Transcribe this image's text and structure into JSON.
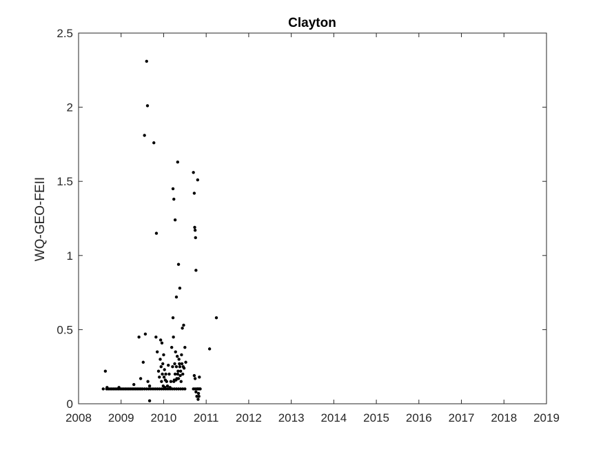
{
  "chart_data": {
    "type": "scatter",
    "title": "Clayton",
    "xlabel": "",
    "ylabel": "WQ-GEO-FEII",
    "xlim": [
      2008,
      2019
    ],
    "ylim": [
      0,
      2.5
    ],
    "x_ticks": [
      "2008",
      "2009",
      "2010",
      "2011",
      "2012",
      "2013",
      "2014",
      "2015",
      "2016",
      "2017",
      "2018",
      "2019"
    ],
    "y_ticks": [
      "0",
      "0.5",
      "1",
      "1.5",
      "2",
      "2.5"
    ],
    "grid": false,
    "marker_color": "#000000",
    "series": [
      {
        "x": [
          2008.58,
          2008.66,
          2008.7,
          2008.74,
          2008.78,
          2008.82,
          2008.86,
          2008.9,
          2008.94,
          2008.98,
          2009.02,
          2009.06,
          2009.1,
          2009.14,
          2009.18,
          2009.22,
          2009.26,
          2009.3,
          2009.34,
          2009.38,
          2009.42,
          2009.46,
          2009.5,
          2009.55,
          2009.6,
          2009.65,
          2009.7,
          2009.75,
          2009.8,
          2009.85,
          2009.9,
          2009.95,
          2010.0,
          2010.05,
          2010.1,
          2010.15,
          2010.2,
          2010.25,
          2010.3,
          2010.35,
          2010.4,
          2010.45,
          2010.5,
          2010.7,
          2010.74,
          2010.78,
          2010.82,
          2010.86,
          2008.63,
          2008.67,
          2008.95,
          2009.3,
          2009.42,
          2009.46,
          2009.52,
          2009.57,
          2009.63,
          2009.67,
          2009.82,
          2009.85,
          2009.88,
          2009.9,
          2009.92,
          2009.93,
          2009.94,
          2009.95,
          2009.96,
          2009.97,
          2009.98,
          2009.99,
          2010.0,
          2010.01,
          2010.02,
          2010.03,
          2010.04,
          2010.05,
          2010.07,
          2010.09,
          2010.11,
          2010.13,
          2010.15,
          2010.17,
          2010.19,
          2010.21,
          2010.22,
          2010.23,
          2010.24,
          2010.25,
          2010.26,
          2010.27,
          2010.28,
          2010.29,
          2010.3,
          2010.31,
          2010.32,
          2010.33,
          2010.34,
          2010.35,
          2010.36,
          2010.37,
          2010.38,
          2010.39,
          2010.4,
          2010.41,
          2010.42,
          2010.43,
          2010.44,
          2010.45,
          2010.46,
          2010.47,
          2010.48,
          2010.5,
          2010.52,
          2010.72,
          2010.74,
          2010.76,
          2010.78,
          2010.8,
          2010.81,
          2010.82,
          2010.83,
          2010.84,
          2010.85,
          2011.08,
          2011.24,
          2009.55,
          2009.6,
          2009.62,
          2009.67,
          2009.77,
          2009.83,
          2010.22,
          2010.24,
          2010.27,
          2010.3,
          2010.33,
          2010.35,
          2010.38,
          2010.7,
          2010.72,
          2010.73,
          2010.74,
          2010.75,
          2010.76,
          2010.8
        ],
        "y": [
          0.1,
          0.1,
          0.1,
          0.1,
          0.1,
          0.1,
          0.1,
          0.1,
          0.1,
          0.1,
          0.1,
          0.1,
          0.1,
          0.1,
          0.1,
          0.1,
          0.1,
          0.1,
          0.1,
          0.1,
          0.1,
          0.1,
          0.1,
          0.1,
          0.1,
          0.1,
          0.1,
          0.1,
          0.1,
          0.1,
          0.1,
          0.1,
          0.1,
          0.1,
          0.1,
          0.1,
          0.1,
          0.1,
          0.1,
          0.1,
          0.1,
          0.1,
          0.1,
          0.1,
          0.1,
          0.1,
          0.1,
          0.1,
          0.22,
          0.11,
          0.11,
          0.13,
          0.45,
          0.17,
          0.28,
          0.47,
          0.15,
          0.12,
          0.45,
          0.35,
          0.22,
          0.18,
          0.3,
          0.43,
          0.25,
          0.15,
          0.41,
          0.2,
          0.27,
          0.12,
          0.33,
          0.18,
          0.23,
          0.11,
          0.16,
          0.2,
          0.15,
          0.12,
          0.26,
          0.2,
          0.11,
          0.15,
          0.38,
          0.25,
          0.58,
          0.45,
          0.15,
          0.16,
          0.27,
          0.2,
          0.35,
          0.16,
          0.25,
          0.17,
          0.32,
          0.2,
          0.22,
          0.17,
          0.3,
          0.27,
          0.25,
          0.19,
          0.22,
          0.15,
          0.33,
          0.27,
          0.51,
          0.2,
          0.25,
          0.53,
          0.24,
          0.38,
          0.28,
          0.19,
          0.17,
          0.08,
          0.05,
          0.1,
          0.03,
          0.07,
          0.05,
          0.18,
          0.1,
          0.37,
          0.58,
          1.81,
          2.31,
          2.01,
          0.02,
          1.76,
          1.15,
          1.45,
          1.38,
          1.24,
          0.72,
          1.63,
          0.94,
          0.78,
          1.56,
          1.42,
          1.19,
          1.17,
          1.12,
          0.9,
          1.51
        ]
      }
    ]
  }
}
